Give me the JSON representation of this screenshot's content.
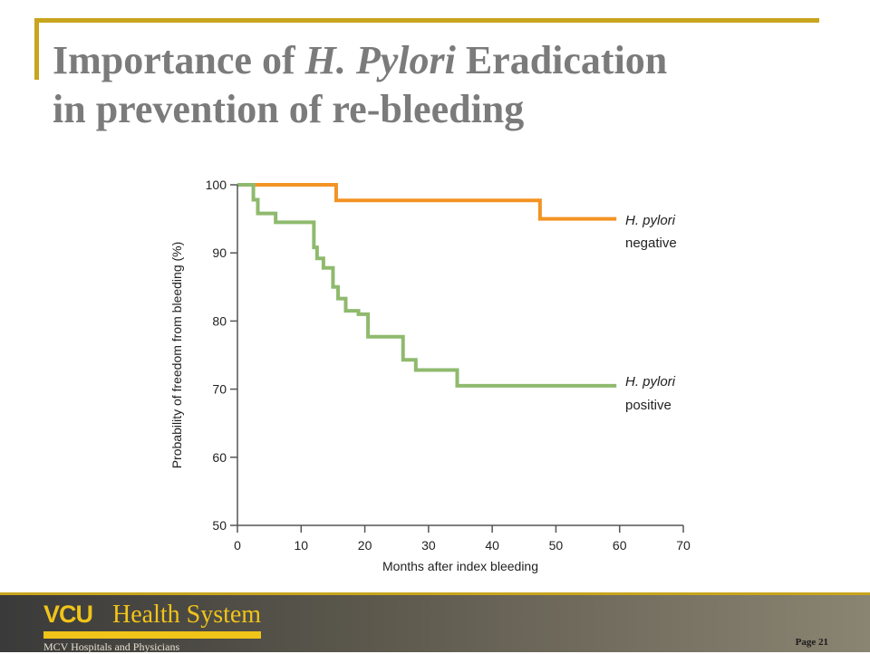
{
  "slide": {
    "title_part1": "Importance of ",
    "title_italic": "H. Pylori",
    "title_part2": " Eradication",
    "title_line2": "in prevention of re-bleeding"
  },
  "footer": {
    "logo_vcu": "VCU",
    "logo_health": "Health System",
    "logo_subtitle": "MCV Hospitals and Physicians",
    "page_label": "Page 21"
  },
  "colors": {
    "accent": "#c8a51e",
    "negative_series": "#f39325",
    "positive_series": "#8fba6e"
  },
  "chart_data": {
    "type": "line",
    "step": true,
    "xlabel": "Months after index bleeding",
    "ylabel": "Probability of freedom from bleeding (%)",
    "xlim": [
      0,
      70
    ],
    "ylim": [
      50,
      100
    ],
    "xticks": [
      0,
      10,
      20,
      30,
      40,
      50,
      60,
      70
    ],
    "yticks": [
      50,
      60,
      70,
      80,
      90,
      100
    ],
    "grid": false,
    "series": [
      {
        "name_line1": "H. pylori",
        "name_line2": "negative",
        "color_key": "negative_series",
        "x": [
          0,
          15.5,
          47.5,
          59.5
        ],
        "y": [
          100,
          97.7,
          95.0,
          95.0
        ]
      },
      {
        "name_line1": "H. pylori",
        "name_line2": "positive",
        "color_key": "positive_series",
        "x": [
          0,
          2.5,
          3.2,
          6,
          12,
          12.5,
          13.5,
          15,
          15.8,
          17,
          19,
          20.5,
          26,
          28,
          34.5,
          59.5
        ],
        "y": [
          100,
          97.8,
          95.8,
          94.5,
          90.8,
          89.2,
          87.8,
          85.0,
          83.3,
          81.5,
          81.0,
          77.7,
          74.3,
          72.8,
          70.5,
          70.5
        ]
      }
    ]
  }
}
